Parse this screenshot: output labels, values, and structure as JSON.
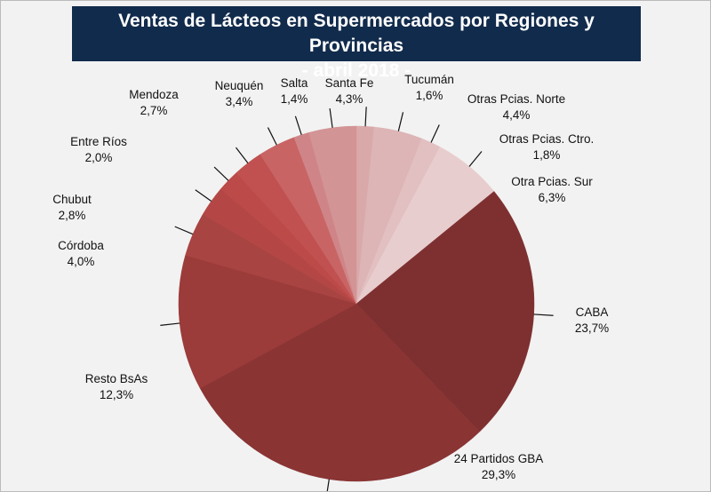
{
  "chart_data": {
    "type": "pie",
    "title": [
      "Ventas de Lácteos en Supermercados por Regiones y Provincias",
      "- abril 2018 -"
    ],
    "start": "12 o'clock, clockwise",
    "slices": [
      {
        "label": "Tucumán",
        "value": 1.6,
        "text": "1,6%",
        "color": "#d9a9aa"
      },
      {
        "label": "Otras Pcias. Norte",
        "value": 4.4,
        "text": "4,4%",
        "color": "#ddb5b6"
      },
      {
        "label": "Otras Pcias. Ctro.",
        "value": 1.8,
        "text": "1,8%",
        "color": "#e2c0c1"
      },
      {
        "label": "Otra Pcias. Sur",
        "value": 6.3,
        "text": "6,3%",
        "color": "#e8cdce"
      },
      {
        "label": "CABA",
        "value": 23.7,
        "text": "23,7%",
        "color": "#7e3030"
      },
      {
        "label": "24 Partidos GBA",
        "value": 29.3,
        "text": "29,3%",
        "color": "#8a3434"
      },
      {
        "label": "Resto BsAs",
        "value": 12.3,
        "text": "12,3%",
        "color": "#9b3b3a"
      },
      {
        "label": "Córdoba",
        "value": 4.0,
        "text": "4,0%",
        "color": "#a84442"
      },
      {
        "label": "Chubut",
        "value": 2.8,
        "text": "2,8%",
        "color": "#b44745"
      },
      {
        "label": "Entre Ríos",
        "value": 2.0,
        "text": "2,0%",
        "color": "#bc4a48"
      },
      {
        "label": "Mendoza",
        "value": 2.7,
        "text": "2,7%",
        "color": "#c05150"
      },
      {
        "label": "Neuquén",
        "value": 3.4,
        "text": "3,4%",
        "color": "#c96465"
      },
      {
        "label": "Salta",
        "value": 1.4,
        "text": "1,4%",
        "color": "#cf8587"
      },
      {
        "label": "Santa Fe",
        "value": 4.3,
        "text": "4,3%",
        "color": "#d39496"
      }
    ]
  }
}
